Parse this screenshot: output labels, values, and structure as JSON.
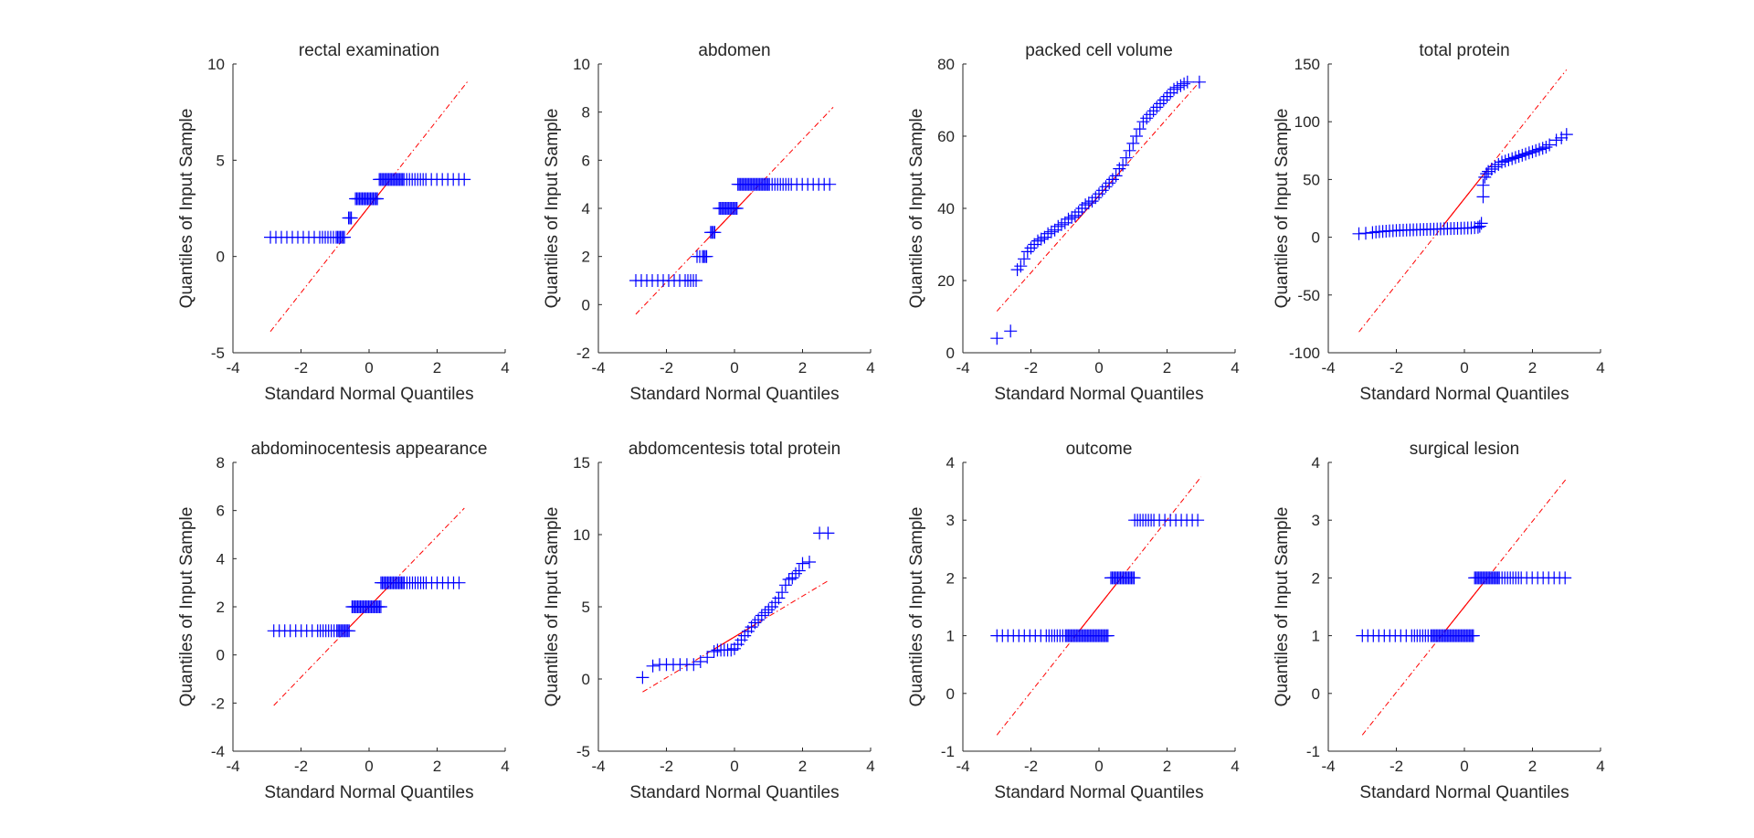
{
  "figure": {
    "xlabel": "Standard Normal Quantiles",
    "ylabel": "Quantiles of Input Sample",
    "colors": {
      "points": "#0000ff",
      "line": "#ff0000",
      "axes": "#262626",
      "background": "#ffffff"
    },
    "grid": false
  },
  "chart_data": [
    {
      "type": "scatter",
      "title": "rectal examination",
      "xlabel": "Standard Normal Quantiles",
      "ylabel": "Quantiles of Input Sample",
      "xlim": [
        -4,
        4
      ],
      "ylim": [
        -5,
        10
      ],
      "xticks": [
        -4,
        -2,
        0,
        2,
        4
      ],
      "yticks": [
        -5,
        0,
        5,
        10
      ],
      "plateaus": [
        {
          "x0": -2.9,
          "x1": -0.7,
          "y": 1
        },
        {
          "x0": -0.6,
          "x1": -0.5,
          "y": 2
        },
        {
          "x0": -0.4,
          "x1": 0.25,
          "y": 3
        },
        {
          "x0": 0.3,
          "x1": 2.9,
          "y": 4
        }
      ],
      "reference_line": {
        "x0": -2.9,
        "y0": -3.9,
        "x1": 2.9,
        "y1": 9.1,
        "solid_from": -0.6,
        "solid_to": 0.6
      }
    },
    {
      "type": "scatter",
      "title": "abdomen",
      "xlabel": "Standard Normal Quantiles",
      "ylabel": "Quantiles of Input Sample",
      "xlim": [
        -4,
        4
      ],
      "ylim": [
        -2,
        10
      ],
      "xticks": [
        -4,
        -2,
        0,
        2,
        4
      ],
      "yticks": [
        -2,
        0,
        2,
        4,
        6,
        8,
        10
      ],
      "plateaus": [
        {
          "x0": -2.9,
          "x1": -1.1,
          "y": 1
        },
        {
          "x0": -1.1,
          "x1": -0.8,
          "y": 2
        },
        {
          "x0": -0.7,
          "x1": -0.55,
          "y": 3
        },
        {
          "x0": -0.45,
          "x1": 0.1,
          "y": 4
        },
        {
          "x0": 0.1,
          "x1": 2.9,
          "y": 5
        }
      ],
      "reference_line": {
        "x0": -2.9,
        "y0": -0.4,
        "x1": 2.9,
        "y1": 8.2,
        "solid_from": -0.8,
        "solid_to": 0.5
      }
    },
    {
      "type": "scatter",
      "title": "packed cell volume",
      "xlabel": "Standard Normal Quantiles",
      "ylabel": "Quantiles of Input Sample",
      "xlim": [
        -4,
        4
      ],
      "ylim": [
        0,
        80
      ],
      "xticks": [
        -4,
        -2,
        0,
        2,
        4
      ],
      "yticks": [
        0,
        20,
        40,
        60,
        80
      ],
      "points": [
        [
          -3.0,
          4
        ],
        [
          -2.6,
          6
        ],
        [
          -2.4,
          23
        ],
        [
          -2.3,
          24
        ],
        [
          -2.2,
          26
        ],
        [
          -2.1,
          28
        ],
        [
          -2.0,
          29
        ],
        [
          -1.9,
          30
        ],
        [
          -1.8,
          31
        ],
        [
          -1.7,
          31.5
        ],
        [
          -1.6,
          32
        ],
        [
          -1.5,
          33
        ],
        [
          -1.4,
          33.5
        ],
        [
          -1.3,
          34
        ],
        [
          -1.2,
          35
        ],
        [
          -1.1,
          35.5
        ],
        [
          -1.0,
          36
        ],
        [
          -0.9,
          37
        ],
        [
          -0.8,
          37.5
        ],
        [
          -0.7,
          38
        ],
        [
          -0.6,
          39
        ],
        [
          -0.5,
          40
        ],
        [
          -0.4,
          41
        ],
        [
          -0.3,
          41.5
        ],
        [
          -0.2,
          42
        ],
        [
          -0.1,
          43
        ],
        [
          0.0,
          44
        ],
        [
          0.1,
          45
        ],
        [
          0.2,
          46
        ],
        [
          0.3,
          47
        ],
        [
          0.4,
          48
        ],
        [
          0.5,
          49
        ],
        [
          0.6,
          51
        ],
        [
          0.7,
          52
        ],
        [
          0.8,
          54
        ],
        [
          0.9,
          56
        ],
        [
          1.0,
          58
        ],
        [
          1.1,
          60
        ],
        [
          1.2,
          62
        ],
        [
          1.3,
          64
        ],
        [
          1.4,
          65
        ],
        [
          1.5,
          66
        ],
        [
          1.6,
          67
        ],
        [
          1.7,
          68
        ],
        [
          1.8,
          69
        ],
        [
          1.9,
          70
        ],
        [
          2.0,
          71
        ],
        [
          2.1,
          72
        ],
        [
          2.2,
          73
        ],
        [
          2.3,
          73.5
        ],
        [
          2.4,
          74
        ],
        [
          2.5,
          74.5
        ],
        [
          2.6,
          75
        ],
        [
          2.95,
          75
        ]
      ],
      "reference_line": {
        "x0": -3.0,
        "y0": 11.5,
        "x1": 2.95,
        "y1": 75,
        "solid_from": -0.7,
        "solid_to": 0.7
      }
    },
    {
      "type": "scatter",
      "title": "total protein",
      "xlabel": "Standard Normal Quantiles",
      "ylabel": "Quantiles of Input Sample",
      "xlim": [
        -4,
        4
      ],
      "ylim": [
        -100,
        150
      ],
      "xticks": [
        -4,
        -2,
        0,
        2,
        4
      ],
      "yticks": [
        -100,
        -50,
        0,
        50,
        100,
        150
      ],
      "points": [
        [
          -3.1,
          3
        ],
        [
          -2.9,
          3.5
        ],
        [
          -2.7,
          4
        ],
        [
          -2.6,
          4.5
        ],
        [
          -2.5,
          4.8
        ],
        [
          -2.4,
          5
        ],
        [
          -2.3,
          5.2
        ],
        [
          -2.2,
          5.5
        ],
        [
          -2.1,
          5.6
        ],
        [
          -2.0,
          5.8
        ],
        [
          -1.9,
          6
        ],
        [
          -1.8,
          6.1
        ],
        [
          -1.7,
          6.2
        ],
        [
          -1.6,
          6.3
        ],
        [
          -1.5,
          6.4
        ],
        [
          -1.4,
          6.5
        ],
        [
          -1.3,
          6.6
        ],
        [
          -1.2,
          6.7
        ],
        [
          -1.1,
          6.8
        ],
        [
          -1.0,
          6.9
        ],
        [
          -0.9,
          7
        ],
        [
          -0.8,
          7.1
        ],
        [
          -0.7,
          7.2
        ],
        [
          -0.6,
          7.3
        ],
        [
          -0.5,
          7.4
        ],
        [
          -0.4,
          7.5
        ],
        [
          -0.3,
          7.6
        ],
        [
          -0.2,
          7.7
        ],
        [
          -0.1,
          7.8
        ],
        [
          0.0,
          7.9
        ],
        [
          0.1,
          8
        ],
        [
          0.2,
          8.1
        ],
        [
          0.3,
          8.3
        ],
        [
          0.4,
          8.6
        ],
        [
          0.45,
          9.5
        ],
        [
          0.5,
          12
        ],
        [
          0.55,
          35
        ],
        [
          0.55,
          45
        ],
        [
          0.6,
          52
        ],
        [
          0.65,
          55
        ],
        [
          0.7,
          57
        ],
        [
          0.8,
          59
        ],
        [
          0.9,
          61
        ],
        [
          1.0,
          63
        ],
        [
          1.1,
          65
        ],
        [
          1.2,
          66
        ],
        [
          1.3,
          67
        ],
        [
          1.4,
          68
        ],
        [
          1.5,
          69
        ],
        [
          1.6,
          70
        ],
        [
          1.7,
          71
        ],
        [
          1.8,
          72
        ],
        [
          1.9,
          73
        ],
        [
          2.0,
          74
        ],
        [
          2.1,
          75
        ],
        [
          2.2,
          76
        ],
        [
          2.3,
          77
        ],
        [
          2.4,
          78
        ],
        [
          2.5,
          80
        ],
        [
          2.7,
          84
        ],
        [
          2.85,
          86
        ],
        [
          3.0,
          89
        ]
      ],
      "reference_line": {
        "x0": -3.1,
        "y0": -82,
        "x1": 3.0,
        "y1": 145,
        "solid_from": -0.65,
        "solid_to": 0.65
      }
    },
    {
      "type": "scatter",
      "title": "abdominocentesis appearance",
      "xlabel": "Standard Normal Quantiles",
      "ylabel": "Quantiles of Input Sample",
      "xlim": [
        -4,
        4
      ],
      "ylim": [
        -4,
        8
      ],
      "xticks": [
        -4,
        -2,
        0,
        2,
        4
      ],
      "yticks": [
        -4,
        -2,
        0,
        2,
        4,
        6,
        8
      ],
      "plateaus": [
        {
          "x0": -2.8,
          "x1": -0.55,
          "y": 1
        },
        {
          "x0": -0.5,
          "x1": 0.35,
          "y": 2
        },
        {
          "x0": 0.35,
          "x1": 2.8,
          "y": 3
        }
      ],
      "reference_line": {
        "x0": -2.8,
        "y0": -2.1,
        "x1": 2.8,
        "y1": 6.1,
        "solid_from": -0.6,
        "solid_to": 0.6
      }
    },
    {
      "type": "scatter",
      "title": "abdomcentesis total protein",
      "xlabel": "Standard Normal Quantiles",
      "ylabel": "Quantiles of Input Sample",
      "xlim": [
        -4,
        4
      ],
      "ylim": [
        -5,
        15
      ],
      "xticks": [
        -4,
        -2,
        0,
        2,
        4
      ],
      "yticks": [
        -5,
        0,
        5,
        10,
        15
      ],
      "points": [
        [
          -2.7,
          0.1
        ],
        [
          -2.4,
          0.9
        ],
        [
          -2.2,
          1.0
        ],
        [
          -2.0,
          1.0
        ],
        [
          -1.8,
          1.0
        ],
        [
          -1.6,
          1.0
        ],
        [
          -1.4,
          1.0
        ],
        [
          -1.2,
          1.0
        ],
        [
          -1.0,
          1.2
        ],
        [
          -0.8,
          1.5
        ],
        [
          -0.6,
          1.9
        ],
        [
          -0.5,
          2.0
        ],
        [
          -0.4,
          2.0
        ],
        [
          -0.3,
          2.0
        ],
        [
          -0.2,
          2.0
        ],
        [
          -0.1,
          2.0
        ],
        [
          0.0,
          2.1
        ],
        [
          0.1,
          2.4
        ],
        [
          0.2,
          2.7
        ],
        [
          0.3,
          3.0
        ],
        [
          0.4,
          3.3
        ],
        [
          0.5,
          3.6
        ],
        [
          0.6,
          3.9
        ],
        [
          0.7,
          4.1
        ],
        [
          0.8,
          4.4
        ],
        [
          0.9,
          4.6
        ],
        [
          1.0,
          4.8
        ],
        [
          1.1,
          5.0
        ],
        [
          1.2,
          5.3
        ],
        [
          1.3,
          5.6
        ],
        [
          1.4,
          6.0
        ],
        [
          1.5,
          6.5
        ],
        [
          1.6,
          6.9
        ],
        [
          1.7,
          7.0
        ],
        [
          1.8,
          7.3
        ],
        [
          1.9,
          7.5
        ],
        [
          2.0,
          8.0
        ],
        [
          2.2,
          8.1
        ],
        [
          2.5,
          10.1
        ],
        [
          2.75,
          10.1
        ]
      ],
      "reference_line": {
        "x0": -2.7,
        "y0": -0.9,
        "x1": 2.75,
        "y1": 6.8,
        "solid_from": -0.6,
        "solid_to": 0.6
      }
    },
    {
      "type": "scatter",
      "title": "outcome",
      "xlabel": "Standard Normal Quantiles",
      "ylabel": "Quantiles of Input Sample",
      "xlim": [
        -4,
        4
      ],
      "ylim": [
        -1,
        4
      ],
      "xticks": [
        -4,
        -2,
        0,
        2,
        4
      ],
      "yticks": [
        -1,
        0,
        1,
        2,
        3,
        4
      ],
      "plateaus": [
        {
          "x0": -3.0,
          "x1": 0.3,
          "y": 1
        },
        {
          "x0": 0.35,
          "x1": 1.05,
          "y": 2
        },
        {
          "x0": 1.05,
          "x1": 3.0,
          "y": 3
        }
      ],
      "reference_line": {
        "x0": -3.0,
        "y0": -0.72,
        "x1": 3.0,
        "y1": 3.75,
        "solid_from": -0.6,
        "solid_to": 0.6
      }
    },
    {
      "type": "scatter",
      "title": "surgical lesion",
      "xlabel": "Standard Normal Quantiles",
      "ylabel": "Quantiles of Input Sample",
      "xlim": [
        -4,
        4
      ],
      "ylim": [
        -1,
        4
      ],
      "xticks": [
        -4,
        -2,
        0,
        2,
        4
      ],
      "yticks": [
        -1,
        0,
        1,
        2,
        3,
        4
      ],
      "plateaus": [
        {
          "x0": -3.0,
          "x1": 0.3,
          "y": 1
        },
        {
          "x0": 0.3,
          "x1": 3.0,
          "y": 2
        }
      ],
      "reference_line": {
        "x0": -3.0,
        "y0": -0.72,
        "x1": 3.0,
        "y1": 3.72,
        "solid_from": -0.6,
        "solid_to": 0.6
      }
    }
  ]
}
